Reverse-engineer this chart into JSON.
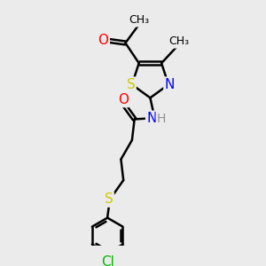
{
  "background_color": "#EBEBEB",
  "atom_colors": {
    "C": "#000000",
    "H": "#909090",
    "N": "#0000FF",
    "O": "#FF0000",
    "S": "#CCCC00",
    "Cl": "#00BB00"
  },
  "bond_color": "#000000",
  "bond_width": 1.8,
  "font_size": 10,
  "figsize": [
    3.0,
    3.0
  ],
  "dpi": 100,
  "xlim": [
    0,
    10
  ],
  "ylim": [
    0,
    10
  ]
}
